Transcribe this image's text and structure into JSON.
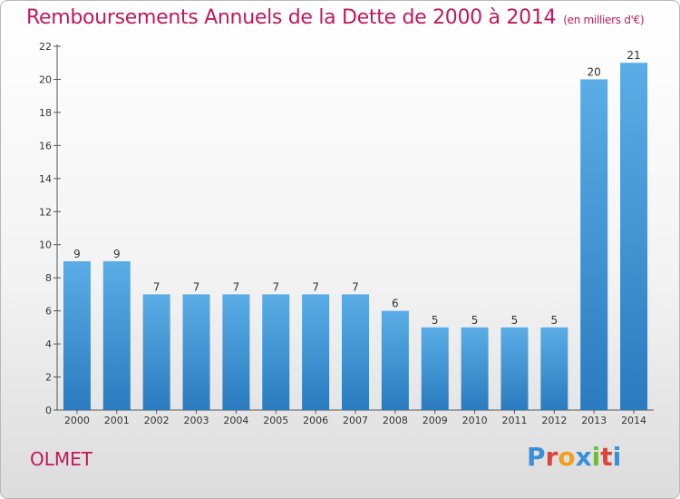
{
  "title": "Remboursements Annuels de la Dette de 2000 à 2014",
  "subtitle": "(en milliers d'€)",
  "town": "OLMET",
  "logo_text": "Proxiti",
  "colors": {
    "title": "#c2185b",
    "bar_light": "#5aade6",
    "bar_dark": "#2a7bbf",
    "logo": [
      "#3a8fd8",
      "#e0433b",
      "#f0a020",
      "#3a8fd8",
      "#6abf3a",
      "#e0433b",
      "#3a8fd8"
    ]
  },
  "chart_data": {
    "type": "bar",
    "categories": [
      "2000",
      "2001",
      "2002",
      "2003",
      "2004",
      "2005",
      "2006",
      "2007",
      "2008",
      "2009",
      "2010",
      "2011",
      "2012",
      "2013",
      "2014"
    ],
    "values": [
      9,
      9,
      7,
      7,
      7,
      7,
      7,
      7,
      6,
      5,
      5,
      5,
      5,
      20,
      21
    ],
    "ylim": [
      0,
      22
    ],
    "yticks": [
      0,
      2,
      4,
      6,
      8,
      10,
      12,
      14,
      16,
      18,
      20,
      22
    ],
    "grid": false,
    "data_labels": true
  }
}
